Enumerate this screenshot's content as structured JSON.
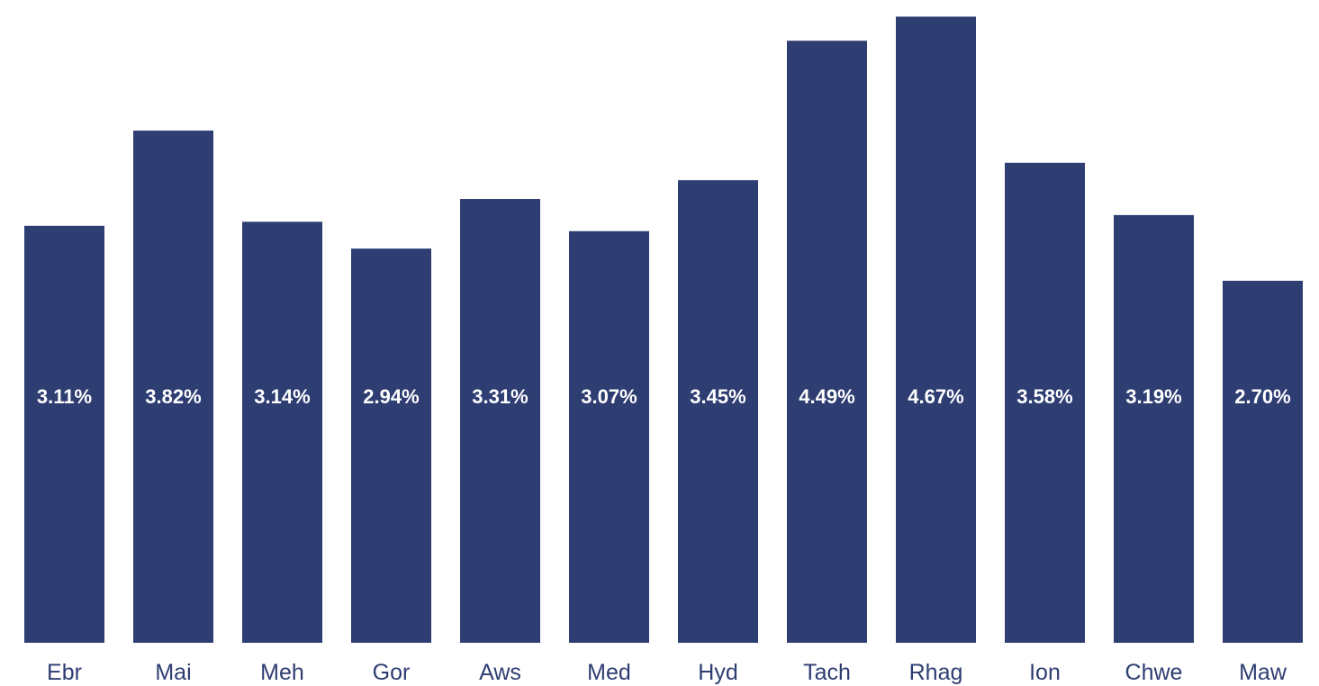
{
  "chart_data": {
    "type": "bar",
    "categories": [
      "Ebr",
      "Mai",
      "Meh",
      "Gor",
      "Aws",
      "Med",
      "Hyd",
      "Tach",
      "Rhag",
      "Ion",
      "Chwe",
      "Maw"
    ],
    "values": [
      3.11,
      3.82,
      3.14,
      2.94,
      3.31,
      3.07,
      3.45,
      4.49,
      4.67,
      3.58,
      3.19,
      2.7
    ],
    "value_labels": [
      "3.11%",
      "3.82%",
      "3.14%",
      "2.94%",
      "3.31%",
      "3.07%",
      "3.45%",
      "4.49%",
      "4.67%",
      "3.58%",
      "3.19%",
      "2.70%"
    ],
    "title": "",
    "xlabel": "",
    "ylabel": "",
    "ylim": [
      0,
      4.7
    ],
    "grid": false,
    "legend": "none",
    "colors": {
      "bar": "#2e3d72",
      "value_label": "#ffffff",
      "tick_label": "#2e3d72"
    }
  }
}
